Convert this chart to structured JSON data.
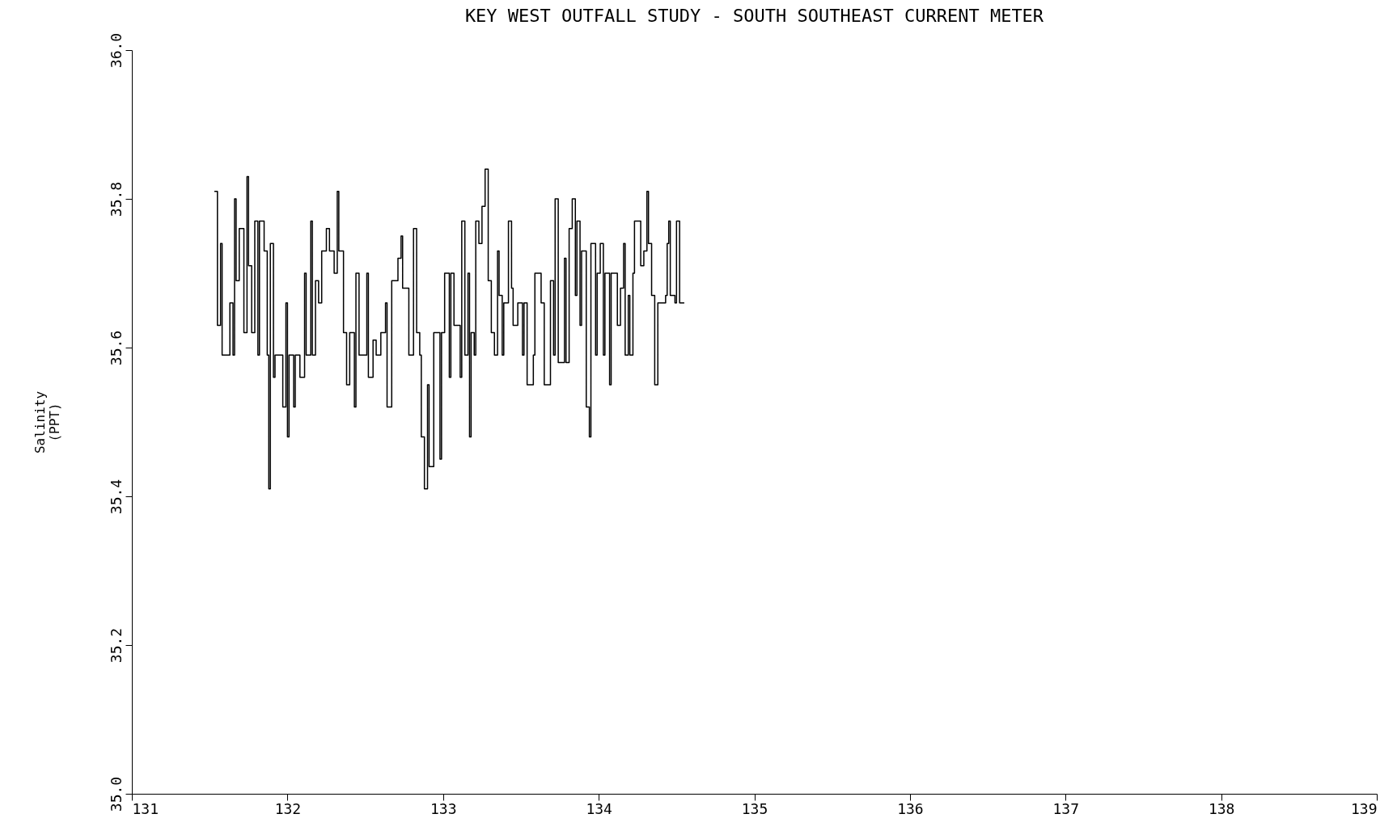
{
  "chart_data": {
    "type": "step",
    "title": "KEY WEST OUTFALL STUDY - SOUTH SOUTHEAST CURRENT METER",
    "ylabel": "Salinity\n(PPT)",
    "xlim": [
      131,
      139
    ],
    "xticks": [
      131,
      132,
      133,
      134,
      135,
      136,
      137,
      138,
      139
    ],
    "ylim": [
      35.0,
      36.0
    ],
    "yticks": [
      {
        "value": 35.0,
        "label": "35.0"
      },
      {
        "value": 35.2,
        "label": "35.2"
      },
      {
        "value": 35.4,
        "label": "35.4"
      },
      {
        "value": 35.6,
        "label": "35.6"
      },
      {
        "value": 35.8,
        "label": "35.8"
      },
      {
        "value": 36.0,
        "label": "36.0"
      }
    ],
    "grid": false,
    "marker": "none",
    "line_style": "solid",
    "series": [
      {
        "color": "#000000",
        "x": [
          131.53,
          131.55,
          131.57,
          131.58,
          131.63,
          131.65,
          131.66,
          131.67,
          131.69,
          131.72,
          131.74,
          131.75,
          131.77,
          131.79,
          131.81,
          131.82,
          131.85,
          131.87,
          131.88,
          131.89,
          131.91,
          131.92,
          131.96,
          131.97,
          131.99,
          132.0,
          132.01,
          132.04,
          132.05,
          132.08,
          132.11,
          132.12,
          132.15,
          132.16,
          132.18,
          132.2,
          132.22,
          132.25,
          132.27,
          132.3,
          132.32,
          132.33,
          132.36,
          132.38,
          132.4,
          132.43,
          132.44,
          132.46,
          132.51,
          132.52,
          132.55,
          132.57,
          132.6,
          132.63,
          132.64,
          132.67,
          132.71,
          132.73,
          132.74,
          132.78,
          132.81,
          132.83,
          132.85,
          132.86,
          132.88,
          132.9,
          132.91,
          132.94,
          132.98,
          132.99,
          133.01,
          133.04,
          133.05,
          133.07,
          133.11,
          133.12,
          133.14,
          133.16,
          133.17,
          133.18,
          133.2,
          133.21,
          133.23,
          133.25,
          133.27,
          133.29,
          133.31,
          133.33,
          133.35,
          133.36,
          133.38,
          133.39,
          133.42,
          133.44,
          133.45,
          133.48,
          133.51,
          133.52,
          133.54,
          133.58,
          133.59,
          133.63,
          133.65,
          133.67,
          133.69,
          133.71,
          133.72,
          133.74,
          133.78,
          133.79,
          133.81,
          133.83,
          133.85,
          133.86,
          133.88,
          133.89,
          133.92,
          133.94,
          133.95,
          133.98,
          133.99,
          134.01,
          134.03,
          134.04,
          134.07,
          134.08,
          134.11,
          134.12,
          134.14,
          134.16,
          134.17,
          134.19,
          134.2,
          134.22,
          134.23,
          134.26,
          134.27,
          134.29,
          134.31,
          134.32,
          134.34,
          134.36,
          134.38,
          134.39,
          134.43,
          134.44,
          134.45,
          134.46,
          134.49,
          134.5,
          134.52,
          134.55
        ],
        "values": [
          35.81,
          35.63,
          35.74,
          35.59,
          35.66,
          35.59,
          35.8,
          35.69,
          35.76,
          35.62,
          35.83,
          35.71,
          35.62,
          35.77,
          35.59,
          35.77,
          35.73,
          35.59,
          35.41,
          35.74,
          35.56,
          35.59,
          35.59,
          35.52,
          35.66,
          35.48,
          35.59,
          35.52,
          35.59,
          35.56,
          35.7,
          35.59,
          35.77,
          35.59,
          35.69,
          35.66,
          35.73,
          35.76,
          35.73,
          35.7,
          35.81,
          35.73,
          35.62,
          35.55,
          35.62,
          35.52,
          35.7,
          35.59,
          35.7,
          35.56,
          35.61,
          35.59,
          35.62,
          35.66,
          35.52,
          35.69,
          35.72,
          35.75,
          35.68,
          35.59,
          35.76,
          35.62,
          35.59,
          35.48,
          35.41,
          35.55,
          35.44,
          35.62,
          35.45,
          35.62,
          35.7,
          35.56,
          35.7,
          35.63,
          35.56,
          35.77,
          35.59,
          35.7,
          35.48,
          35.62,
          35.59,
          35.77,
          35.74,
          35.79,
          35.84,
          35.69,
          35.62,
          35.59,
          35.73,
          35.67,
          35.59,
          35.66,
          35.77,
          35.68,
          35.63,
          35.66,
          35.59,
          35.66,
          35.55,
          35.59,
          35.7,
          35.66,
          35.55,
          35.55,
          35.69,
          35.59,
          35.8,
          35.58,
          35.72,
          35.58,
          35.76,
          35.8,
          35.67,
          35.77,
          35.63,
          35.73,
          35.52,
          35.48,
          35.74,
          35.59,
          35.7,
          35.74,
          35.59,
          35.7,
          35.55,
          35.7,
          35.7,
          35.63,
          35.68,
          35.74,
          35.59,
          35.67,
          35.59,
          35.7,
          35.77,
          35.77,
          35.71,
          35.73,
          35.81,
          35.74,
          35.67,
          35.55,
          35.66,
          35.66,
          35.67,
          35.74,
          35.77,
          35.67,
          35.66,
          35.77,
          35.66,
          35.66
        ]
      }
    ]
  }
}
